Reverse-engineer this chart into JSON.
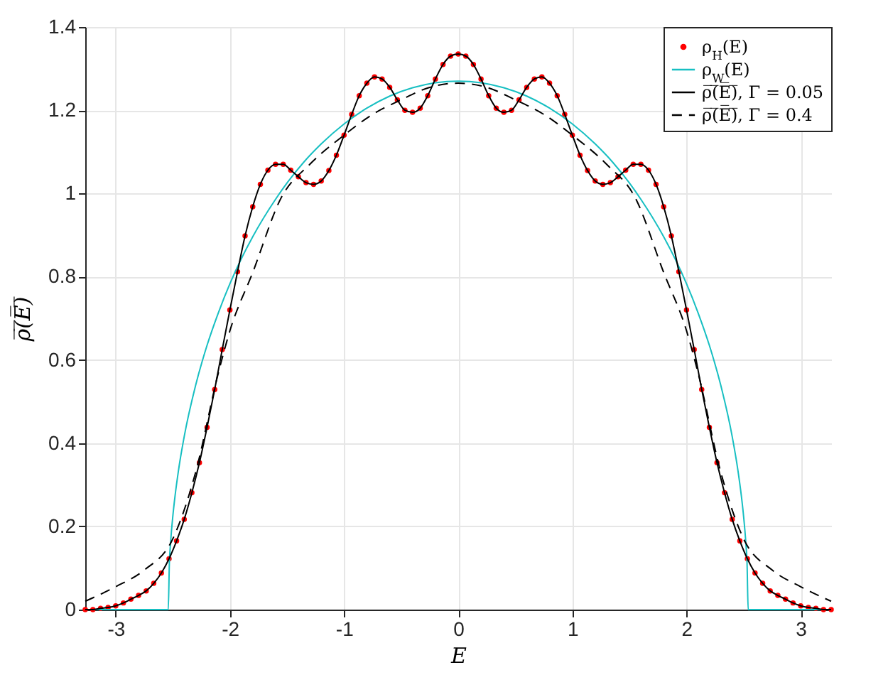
{
  "chart_data": {
    "type": "line",
    "xlabel": "E",
    "ylabel": "ρ̅(̅E̅)̅",
    "xlim": [
      -3.267,
      3.267
    ],
    "ylim": [
      0,
      1.4
    ],
    "xticks": [
      -3,
      -2,
      -1,
      0,
      1,
      2,
      3
    ],
    "yticks": [
      0,
      0.2,
      0.4,
      0.6,
      0.8,
      1,
      1.2,
      1.4
    ],
    "grid": true,
    "legend": "top right",
    "series": [
      {
        "name": "ρ$_{H}$(E)",
        "type": "scatter",
        "marker": "circle",
        "color": "#ff0000",
        "x": [
          -3.267,
          -3.2,
          -3.133,
          -3.067,
          -3.0,
          -2.933,
          -2.867,
          -2.8,
          -2.733,
          -2.667,
          -2.6,
          -2.533,
          -2.467,
          -2.4,
          -2.333,
          -2.267,
          -2.2,
          -2.133,
          -2.067,
          -2.0,
          -1.933,
          -1.867,
          -1.8,
          -1.733,
          -1.667,
          -1.6,
          -1.533,
          -1.467,
          -1.4,
          -1.333,
          -1.267,
          -1.2,
          -1.133,
          -1.067,
          -1.0,
          -0.933,
          -0.867,
          -0.8,
          -0.733,
          -0.667,
          -0.6,
          -0.533,
          -0.467,
          -0.4,
          -0.333,
          -0.267,
          -0.2,
          -0.133,
          -0.067,
          0,
          0.067,
          0.133,
          0.2,
          0.267,
          0.333,
          0.4,
          0.467,
          0.533,
          0.6,
          0.667,
          0.733,
          0.8,
          0.867,
          0.933,
          1.0,
          1.067,
          1.133,
          1.2,
          1.267,
          1.333,
          1.4,
          1.467,
          1.533,
          1.6,
          1.667,
          1.733,
          1.8,
          1.867,
          1.933,
          2.0,
          2.067,
          2.133,
          2.2,
          2.267,
          2.333,
          2.4,
          2.467,
          2.533,
          2.6,
          2.667,
          2.733,
          2.8,
          2.867,
          2.933,
          3.0,
          3.067,
          3.133,
          3.2,
          3.267
        ],
        "values": [
          0,
          0,
          0.003,
          0.005,
          0.009,
          0.016,
          0.025,
          0.034,
          0.045,
          0.063,
          0.088,
          0.122,
          0.165,
          0.217,
          0.281,
          0.353,
          0.438,
          0.529,
          0.625,
          0.72,
          0.812,
          0.898,
          0.968,
          1.022,
          1.056,
          1.07,
          1.07,
          1.056,
          1.04,
          1.026,
          1.022,
          1.03,
          1.055,
          1.092,
          1.14,
          1.19,
          1.235,
          1.265,
          1.28,
          1.275,
          1.255,
          1.225,
          1.2,
          1.195,
          1.205,
          1.235,
          1.275,
          1.31,
          1.33,
          1.335,
          1.33,
          1.31,
          1.275,
          1.235,
          1.205,
          1.195,
          1.2,
          1.225,
          1.255,
          1.275,
          1.28,
          1.265,
          1.235,
          1.19,
          1.14,
          1.092,
          1.055,
          1.03,
          1.022,
          1.026,
          1.04,
          1.056,
          1.07,
          1.07,
          1.056,
          1.022,
          0.968,
          0.898,
          0.812,
          0.72,
          0.625,
          0.529,
          0.438,
          0.353,
          0.281,
          0.217,
          0.165,
          0.122,
          0.088,
          0.063,
          0.045,
          0.034,
          0.025,
          0.016,
          0.009,
          0.005,
          0.003,
          0,
          0
        ]
      },
      {
        "name": "ρ$_{W}$(E)",
        "type": "line",
        "line_style": "solid",
        "color": "#17bfc2",
        "x": [
          -3.267,
          -2.54,
          -2.53,
          -2.52,
          -2.5,
          -2.48,
          -2.45,
          -2.4,
          -2.3,
          -2.2,
          -2.1,
          -2.0,
          -1.9,
          -1.8,
          -1.6,
          -1.5,
          -1.35,
          -1.2,
          -1.0,
          -0.8,
          -0.6,
          -0.4,
          -0.2,
          0,
          0.2,
          0.4,
          0.6,
          0.8,
          1.0,
          1.2,
          1.35,
          1.5,
          1.6,
          1.8,
          1.9,
          2.0,
          2.1,
          2.2,
          2.3,
          2.4,
          2.45,
          2.48,
          2.5,
          2.52,
          2.53,
          2.54,
          3.267
        ],
        "values": [
          0,
          0,
          0.113,
          0.159,
          0.224,
          0.274,
          0.335,
          0.416,
          0.539,
          0.635,
          0.714,
          0.783,
          0.843,
          0.896,
          0.986,
          1.025,
          1.076,
          1.119,
          1.167,
          1.205,
          1.234,
          1.254,
          1.266,
          1.27,
          1.266,
          1.254,
          1.234,
          1.205,
          1.167,
          1.119,
          1.076,
          1.025,
          0.986,
          0.896,
          0.843,
          0.783,
          0.714,
          0.635,
          0.539,
          0.416,
          0.335,
          0.274,
          0.224,
          0.159,
          0.113,
          0,
          0
        ]
      },
      {
        "name": "ρ̅(̅E̅)̅, Γ = 0.05",
        "type": "line",
        "line_style": "solid",
        "color": "#000000",
        "x": [
          -3.267,
          -3.2,
          -3.133,
          -3.067,
          -3.0,
          -2.933,
          -2.867,
          -2.8,
          -2.733,
          -2.667,
          -2.6,
          -2.533,
          -2.467,
          -2.4,
          -2.333,
          -2.267,
          -2.2,
          -2.133,
          -2.067,
          -2.0,
          -1.933,
          -1.867,
          -1.8,
          -1.733,
          -1.667,
          -1.6,
          -1.533,
          -1.467,
          -1.4,
          -1.333,
          -1.267,
          -1.2,
          -1.133,
          -1.067,
          -1.0,
          -0.933,
          -0.867,
          -0.8,
          -0.733,
          -0.667,
          -0.6,
          -0.533,
          -0.467,
          -0.4,
          -0.333,
          -0.267,
          -0.2,
          -0.133,
          -0.067,
          0,
          0.067,
          0.133,
          0.2,
          0.267,
          0.333,
          0.4,
          0.467,
          0.533,
          0.6,
          0.667,
          0.733,
          0.8,
          0.867,
          0.933,
          1.0,
          1.067,
          1.133,
          1.2,
          1.267,
          1.333,
          1.4,
          1.467,
          1.533,
          1.6,
          1.667,
          1.733,
          1.8,
          1.867,
          1.933,
          2.0,
          2.067,
          2.133,
          2.2,
          2.267,
          2.333,
          2.4,
          2.467,
          2.533,
          2.6,
          2.667,
          2.733,
          2.8,
          2.867,
          2.933,
          3.0,
          3.067,
          3.133,
          3.2,
          3.267
        ],
        "values": [
          0,
          0,
          0.003,
          0.005,
          0.009,
          0.016,
          0.025,
          0.034,
          0.045,
          0.063,
          0.088,
          0.122,
          0.165,
          0.217,
          0.281,
          0.353,
          0.438,
          0.529,
          0.625,
          0.72,
          0.812,
          0.898,
          0.968,
          1.022,
          1.056,
          1.07,
          1.07,
          1.056,
          1.04,
          1.026,
          1.022,
          1.03,
          1.055,
          1.092,
          1.14,
          1.19,
          1.235,
          1.265,
          1.28,
          1.275,
          1.255,
          1.225,
          1.2,
          1.195,
          1.205,
          1.235,
          1.275,
          1.31,
          1.33,
          1.335,
          1.33,
          1.31,
          1.275,
          1.235,
          1.205,
          1.195,
          1.2,
          1.225,
          1.255,
          1.275,
          1.28,
          1.265,
          1.235,
          1.19,
          1.14,
          1.092,
          1.055,
          1.03,
          1.022,
          1.026,
          1.04,
          1.056,
          1.07,
          1.07,
          1.056,
          1.022,
          0.968,
          0.898,
          0.812,
          0.72,
          0.625,
          0.529,
          0.438,
          0.353,
          0.281,
          0.217,
          0.165,
          0.122,
          0.088,
          0.063,
          0.045,
          0.034,
          0.025,
          0.016,
          0.009,
          0.005,
          0.003,
          0,
          0
        ]
      },
      {
        "name": "ρ̅(̅E̅)̅, Γ = 0.4",
        "type": "line",
        "line_style": "dashed",
        "color": "#000000",
        "x": [
          -3.267,
          -3.0,
          -2.75,
          -2.5,
          -2.3,
          -2.1,
          -2.0,
          -1.8,
          -1.55,
          -1.3,
          -1.0,
          -0.75,
          -0.5,
          -0.25,
          0,
          0.25,
          0.5,
          0.75,
          1.0,
          1.3,
          1.55,
          1.8,
          2.0,
          2.1,
          2.3,
          2.5,
          2.75,
          3.0,
          3.267
        ],
        "values": [
          0.02,
          0.055,
          0.095,
          0.17,
          0.33,
          0.57,
          0.67,
          0.81,
          0.99,
          1.07,
          1.14,
          1.19,
          1.225,
          1.255,
          1.265,
          1.255,
          1.225,
          1.19,
          1.14,
          1.07,
          0.99,
          0.81,
          0.67,
          0.57,
          0.33,
          0.17,
          0.095,
          0.055,
          0.02
        ]
      }
    ]
  }
}
